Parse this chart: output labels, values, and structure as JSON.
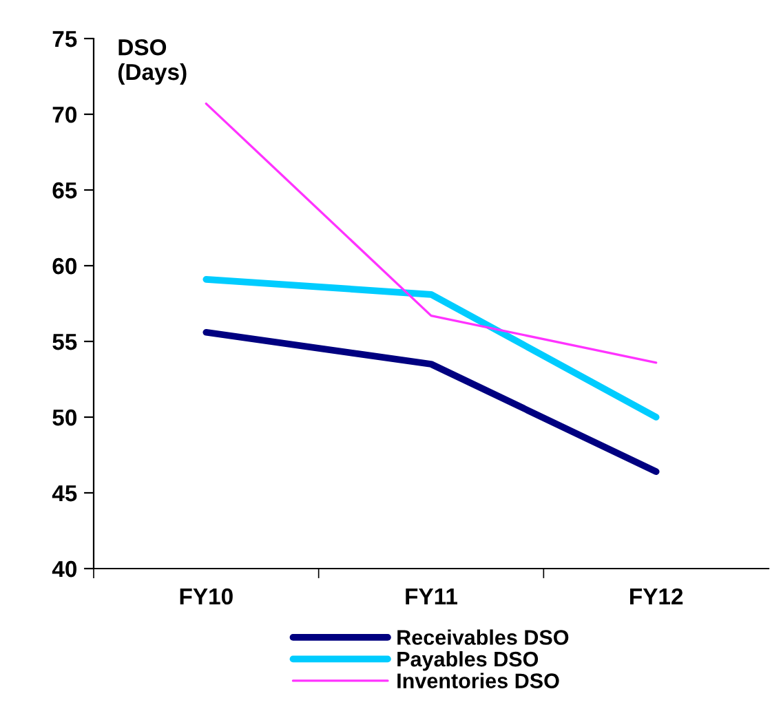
{
  "chart_data": {
    "type": "line",
    "ylabel": "DSO\n(Days)",
    "categories": [
      "FY10",
      "FY11",
      "FY12"
    ],
    "series": [
      {
        "name": "Receivables DSO",
        "color": "#000080",
        "values": [
          55.6,
          53.5,
          46.4
        ]
      },
      {
        "name": "Payables DSO",
        "color": "#00ccff",
        "values": [
          59.1,
          58.1,
          50.0
        ]
      },
      {
        "name": "Inventories DSO",
        "color": "#ff33ff",
        "values": [
          70.7,
          56.7,
          53.6
        ]
      }
    ],
    "ylim": [
      40,
      75
    ],
    "yticks": [
      40,
      45,
      50,
      55,
      60,
      65,
      70,
      75
    ],
    "grid": false,
    "legend": "bottom",
    "marker": "none",
    "line_style": "solid"
  }
}
